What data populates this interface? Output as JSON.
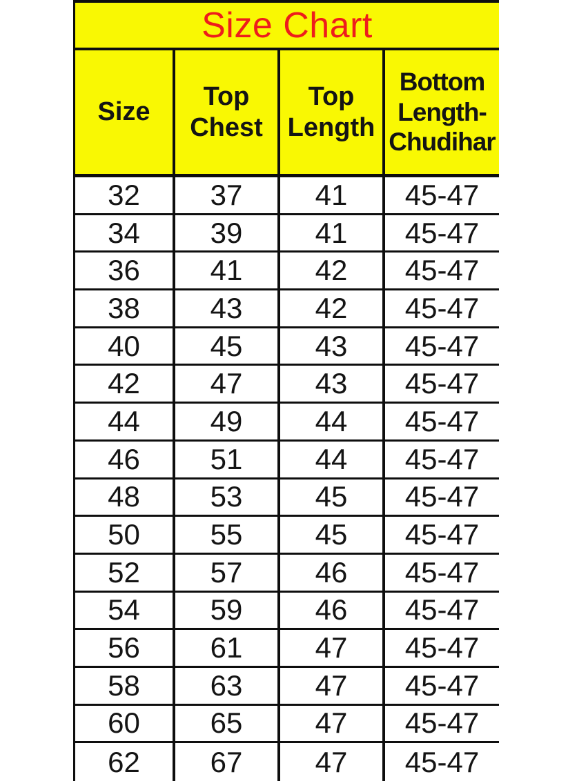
{
  "colors": {
    "background": "#ffffff",
    "table_yellow": "#f9f803",
    "title_red": "#ee1c1c",
    "grid_line": "#0e0e0e",
    "text": "#141414"
  },
  "chart_data": {
    "type": "table",
    "title": "Size Chart",
    "columns": [
      "Size",
      "Top\nChest",
      "Top\nLength",
      "Bottom\nLength-\nChudihar"
    ],
    "columns_plain": [
      "Size",
      "Top Chest",
      "Top Length",
      "Bottom Length-Chudihar"
    ],
    "rows": [
      [
        "32",
        "37",
        "41",
        "45-47"
      ],
      [
        "34",
        "39",
        "41",
        "45-47"
      ],
      [
        "36",
        "41",
        "42",
        "45-47"
      ],
      [
        "38",
        "43",
        "42",
        "45-47"
      ],
      [
        "40",
        "45",
        "43",
        "45-47"
      ],
      [
        "42",
        "47",
        "43",
        "45-47"
      ],
      [
        "44",
        "49",
        "44",
        "45-47"
      ],
      [
        "46",
        "51",
        "44",
        "45-47"
      ],
      [
        "48",
        "53",
        "45",
        "45-47"
      ],
      [
        "50",
        "55",
        "45",
        "45-47"
      ],
      [
        "52",
        "57",
        "46",
        "45-47"
      ],
      [
        "54",
        "59",
        "46",
        "45-47"
      ],
      [
        "56",
        "61",
        "47",
        "45-47"
      ],
      [
        "58",
        "63",
        "47",
        "45-47"
      ],
      [
        "60",
        "65",
        "47",
        "45-47"
      ],
      [
        "62",
        "67",
        "47",
        "45-47"
      ]
    ]
  }
}
